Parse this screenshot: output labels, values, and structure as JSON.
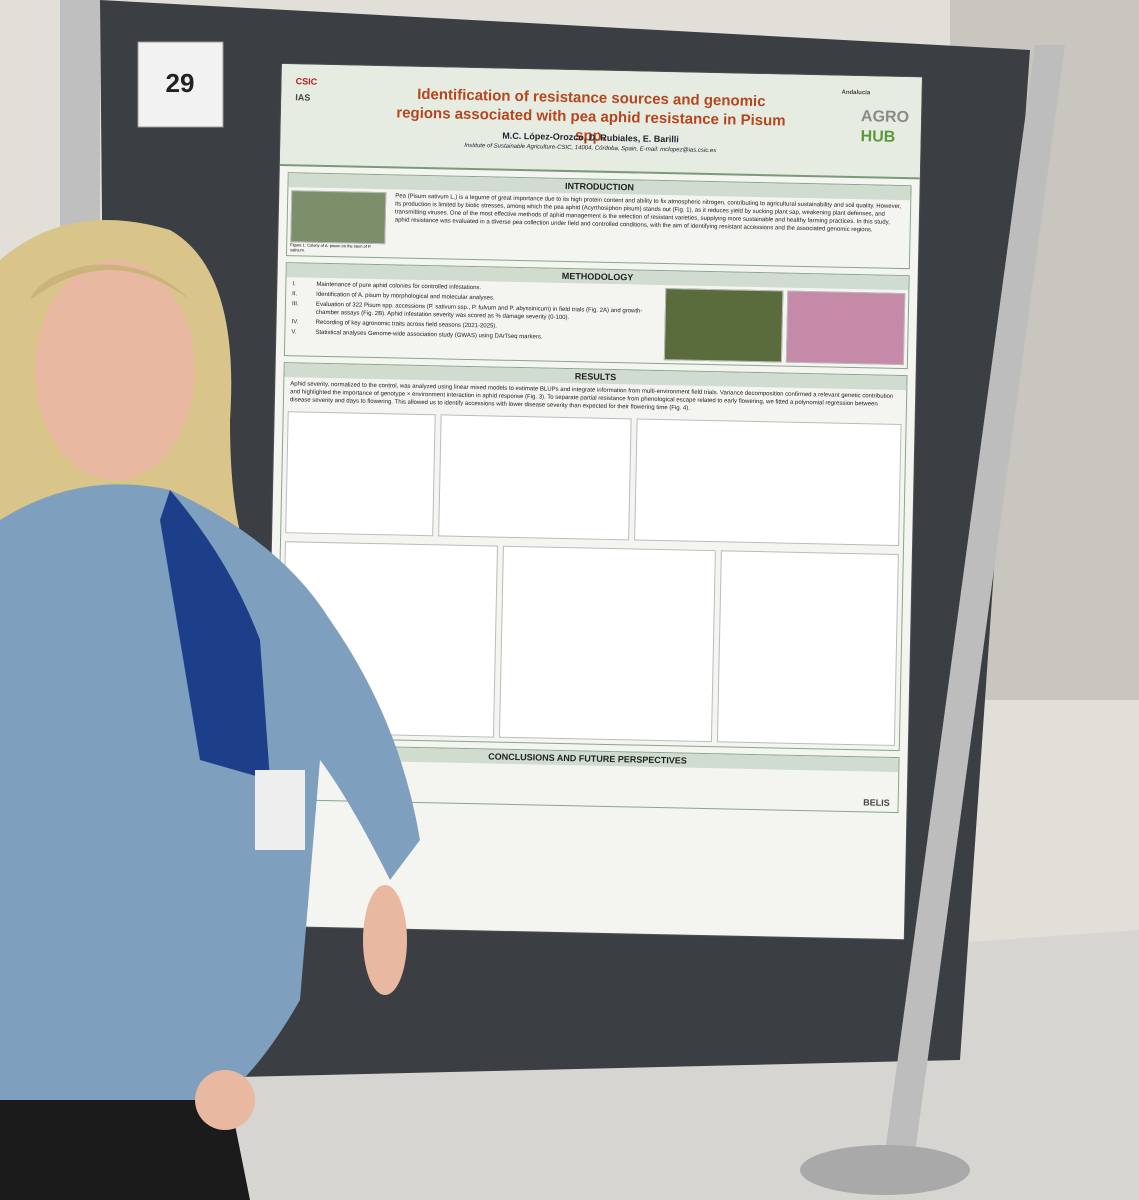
{
  "board_number": "29",
  "poster": {
    "logos": [
      "CSIC",
      "IAS",
      "Andalucía",
      "AGRO",
      "HUB",
      "BELIS"
    ],
    "title": "Identification of resistance sources and genomic regions associated with pea aphid resistance in Pisum spp.",
    "authors": "M.C. López-Orozco, D. Rubiales, E. Barilli",
    "affiliation": "Institute of Sustainable Agriculture-CSIC, 14004, Córdoba, Spain, E-mail: mclopez@ias.csic.es",
    "introduction": {
      "heading": "INTRODUCTION",
      "text": "Pea (Pisum sativum L.) is a legume of great importance due to its high protein content and ability to fix atmospheric nitrogen, contributing to agricultural sustainability and soil quality. However, its production is limited by biotic stresses, among which the pea aphid (Acyrthosiphon pisum) stands out (Fig. 1), as it reduces yield by sucking plant sap, weakening plant defenses, and transmitting viruses. One of the most effective methods of aphid management is the selection of resistant varieties, supplying more sustainable and healthy farming practices. In this study, aphid resistance was evaluated in a diverse pea collection under field and controlled conditions, with the aim of identifying resistant accessions and the associated genomic regions.",
      "caption": "Figure 1. Colony of A. pisum on the stem of P. sativum."
    },
    "methodology": {
      "heading": "METHODOLOGY",
      "items": [
        {
          "num": "I.",
          "text": "Maintenance of pure aphid colonies for controlled infestations."
        },
        {
          "num": "II.",
          "text": "Identification of A. pisum by morphological and molecular analyses."
        },
        {
          "num": "III.",
          "text": "Evaluation of 322 Pisum spp. accessions (P. sativum ssp., P. fulvum and P. abyssinicum) in field trials (Fig. 2A) and growth-chamber assays (Fig. 2B). Aphid infestation severity was scored as % damage severity (0-100)."
        },
        {
          "num": "IV.",
          "text": "Recording of key agronomic traits across field seasons (2021-2025)."
        },
        {
          "num": "V.",
          "text": "Statistical analyses Genome-wide association study (GWAS) using DArTseq markers."
        }
      ]
    },
    "results": {
      "heading": "RESULTS",
      "text": "Aphid severity, normalized to the control, was analyzed using linear mixed models to estimate BLUPs and integrate information from multi-environment field trials. Variance decomposition confirmed a relevant genetic contribution and highlighted the importance of genotype × environment interaction in aphid response (Fig. 3). To separate partial resistance from phenological escape related to early flowering, we fitted a polynomial regression between disease severity and days to flowering. This allowed us to identify accessions with lower disease severity than expected for their flowering time (Fig. 4)."
    },
    "conclusions": {
      "heading": "CONCLUSIONS AND FUTURE PERSPECTIVES"
    }
  }
}
